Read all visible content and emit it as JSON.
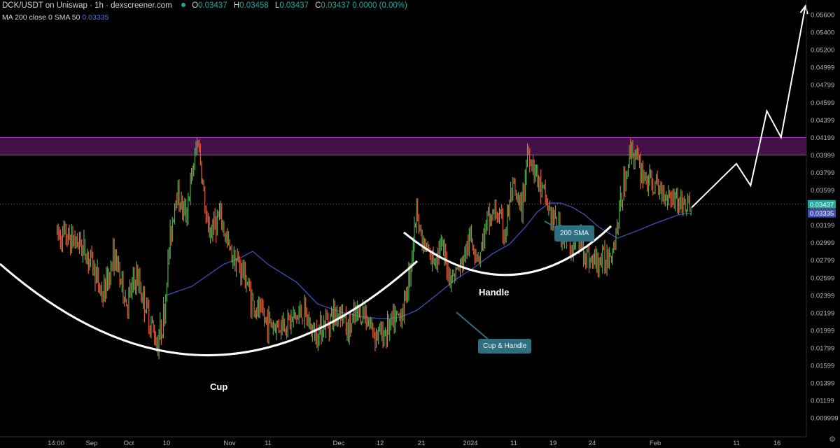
{
  "header": {
    "title": "DCK/USDT on Uniswap · 1h · dexscreener.com",
    "ohlc": [
      {
        "label": "O",
        "value": "0.03437"
      },
      {
        "label": "H",
        "value": "0.03458"
      },
      {
        "label": "L",
        "value": "0.03437"
      },
      {
        "label": "C",
        "value": "0.03437"
      }
    ],
    "change": "0.0000 (0.00%)",
    "indicator_label": "MA 200 close 0 SMA 50",
    "indicator_value": "0.03335"
  },
  "annotations": {
    "cup": "Cup",
    "handle": "Handle",
    "cup_handle_callout": "Cup & Handle",
    "sma_callout": "200 SMA"
  },
  "colors": {
    "up": "#26a69a",
    "down": "#ef5350",
    "candle_up": "#4caf50",
    "candle_down": "#e65a3c",
    "sma": "#3f51b5",
    "resistance_zone": "#5a1660",
    "price_badge": "#26a69a",
    "sma_badge": "#3f51b5",
    "callout": "#2f6f80"
  },
  "chart_data": {
    "type": "line",
    "title": "DCK/USDT on Uniswap · 1h · dexscreener.com",
    "x_ticks": [
      "14:00",
      "Sep",
      "Oct",
      "10",
      "Nov",
      "11",
      "Dec",
      "12",
      "21",
      "2024",
      "11",
      "19",
      "24",
      "Feb",
      "11",
      "16"
    ],
    "y_ticks": [
      "0.05600",
      "0.05400",
      "0.05200",
      "0.04999",
      "0.04799",
      "0.04599",
      "0.04399",
      "0.04199",
      "0.03999",
      "0.03799",
      "0.03599",
      "0.03399",
      "0.03199",
      "0.02999",
      "0.02799",
      "0.02599",
      "0.02399",
      "0.02199",
      "0.01999",
      "0.01799",
      "0.01599",
      "0.01399",
      "0.01199",
      "0.009999"
    ],
    "ylim": [
      0.0085,
      0.0578
    ],
    "last_price": "0.03437",
    "sma_last": "0.03335",
    "resistance_zone": [
      0.03999,
      0.04199
    ],
    "series": [
      {
        "name": "DCK/USDT",
        "points": [
          [
            0.03,
            0.031
          ],
          [
            0.65,
            0.03
          ],
          [
            1.0,
            0.0278
          ],
          [
            1.3,
            0.0238
          ],
          [
            1.6,
            0.0286
          ],
          [
            1.95,
            0.023
          ],
          [
            2.2,
            0.0262
          ],
          [
            2.5,
            0.022
          ],
          [
            2.75,
            0.0185
          ],
          [
            2.95,
            0.022
          ],
          [
            3.05,
            0.03
          ],
          [
            3.15,
            0.036
          ],
          [
            3.3,
            0.033
          ],
          [
            3.5,
            0.042
          ],
          [
            3.65,
            0.031
          ],
          [
            3.85,
            0.033
          ],
          [
            4.0,
            0.029
          ],
          [
            4.2,
            0.0278
          ],
          [
            4.4,
            0.0262
          ],
          [
            4.6,
            0.023
          ],
          [
            4.85,
            0.0215
          ],
          [
            5.1,
            0.0205
          ],
          [
            5.3,
            0.021
          ],
          [
            5.5,
            0.022
          ],
          [
            5.65,
            0.0195
          ],
          [
            5.85,
            0.0212
          ],
          [
            6.05,
            0.0225
          ],
          [
            6.2,
            0.0198
          ],
          [
            6.4,
            0.0215
          ],
          [
            6.6,
            0.0222
          ],
          [
            6.85,
            0.0198
          ],
          [
            7.05,
            0.0195
          ],
          [
            7.25,
            0.0205
          ],
          [
            7.45,
            0.0215
          ],
          [
            7.6,
            0.023
          ],
          [
            7.75,
            0.028
          ],
          [
            7.9,
            0.0345
          ],
          [
            8.0,
            0.03
          ],
          [
            8.2,
            0.028
          ],
          [
            8.4,
            0.0295
          ],
          [
            8.6,
            0.026
          ],
          [
            8.8,
            0.0272
          ],
          [
            9.0,
            0.0305
          ],
          [
            9.2,
            0.0285
          ],
          [
            9.4,
            0.0325
          ],
          [
            9.6,
            0.0335
          ],
          [
            9.8,
            0.031
          ],
          [
            9.95,
            0.036
          ],
          [
            10.1,
            0.0345
          ],
          [
            10.2,
            0.0335
          ],
          [
            10.35,
            0.0405
          ],
          [
            10.5,
            0.039
          ],
          [
            10.65,
            0.0365
          ],
          [
            10.8,
            0.035
          ],
          [
            10.95,
            0.033
          ],
          [
            11.15,
            0.0315
          ],
          [
            11.35,
            0.03
          ],
          [
            11.5,
            0.0295
          ],
          [
            11.7,
            0.0305
          ],
          [
            11.85,
            0.0285
          ],
          [
            12.0,
            0.0278
          ],
          [
            12.2,
            0.028
          ],
          [
            12.35,
            0.03
          ],
          [
            12.5,
            0.0365
          ],
          [
            12.62,
            0.041
          ],
          [
            12.75,
            0.0385
          ],
          [
            12.9,
            0.037
          ],
          [
            13.05,
            0.036
          ],
          [
            13.2,
            0.0355
          ],
          [
            13.35,
            0.0343
          ],
          [
            13.45,
            0.034
          ]
        ]
      },
      {
        "name": "MA 200 close 0 SMA 50",
        "points": [
          [
            3.0,
            0.024
          ],
          [
            3.4,
            0.025
          ],
          [
            3.9,
            0.0275
          ],
          [
            4.3,
            0.0283
          ],
          [
            4.6,
            0.029
          ],
          [
            5.0,
            0.0275
          ],
          [
            5.4,
            0.0255
          ],
          [
            5.7,
            0.023
          ],
          [
            6.1,
            0.022
          ],
          [
            6.6,
            0.0215
          ],
          [
            7.1,
            0.0213
          ],
          [
            7.5,
            0.0215
          ],
          [
            7.9,
            0.0223
          ],
          [
            8.3,
            0.024
          ],
          [
            8.7,
            0.0258
          ],
          [
            9.1,
            0.0272
          ],
          [
            9.5,
            0.0287
          ],
          [
            9.9,
            0.0298
          ],
          [
            10.3,
            0.0318
          ],
          [
            10.6,
            0.0335
          ],
          [
            10.9,
            0.0345
          ],
          [
            11.2,
            0.0345
          ],
          [
            11.5,
            0.034
          ],
          [
            11.8,
            0.0332
          ],
          [
            12.1,
            0.0318
          ],
          [
            12.4,
            0.0305
          ],
          [
            12.7,
            0.0313
          ],
          [
            13.0,
            0.0322
          ],
          [
            13.3,
            0.0332
          ],
          [
            13.45,
            0.03335
          ]
        ]
      }
    ],
    "projection": [
      [
        13.45,
        0.034
      ],
      [
        14.0,
        0.039
      ],
      [
        14.35,
        0.0365
      ],
      [
        14.75,
        0.045
      ],
      [
        15.1,
        0.042
      ],
      [
        15.7,
        0.057
      ]
    ]
  }
}
